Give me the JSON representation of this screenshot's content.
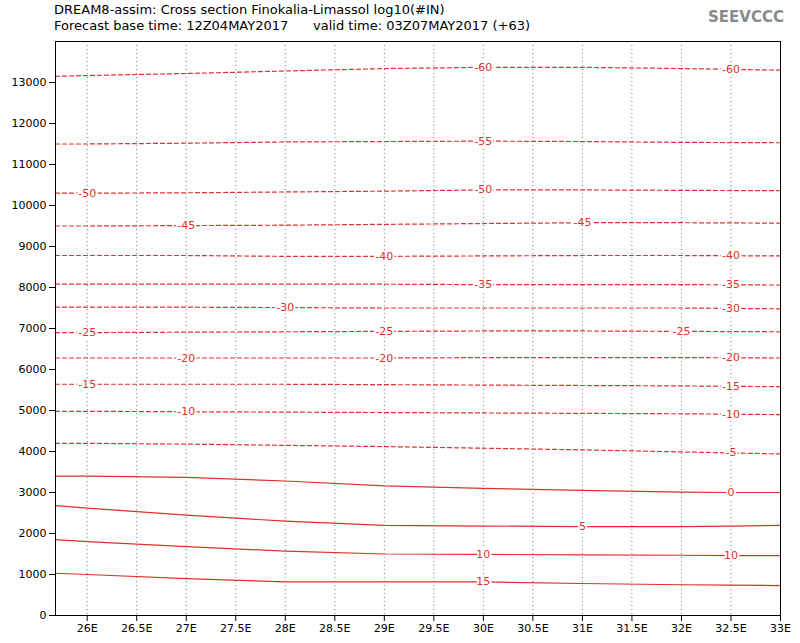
{
  "chart_data": {
    "type": "line",
    "title": "DREAM8-assim: Cross section Finokalia-Limassol log10(#IN)",
    "subtitle": "Forecast base time: 12Z04MAY2017      valid time: 03Z07MAY2017 (+63)",
    "logo": "SEEVCCC",
    "x": [
      25.68,
      26,
      27,
      28,
      29,
      30,
      31,
      32,
      32.5,
      33
    ],
    "xlim": [
      25.68,
      33
    ],
    "xticks": [
      {
        "value": 26,
        "label": "26E"
      },
      {
        "value": 26.5,
        "label": "26.5E"
      },
      {
        "value": 27,
        "label": "27E"
      },
      {
        "value": 27.5,
        "label": "27.5E"
      },
      {
        "value": 28,
        "label": "28E"
      },
      {
        "value": 28.5,
        "label": "28.5E"
      },
      {
        "value": 29,
        "label": "29E"
      },
      {
        "value": 29.5,
        "label": "29.5E"
      },
      {
        "value": 30,
        "label": "30E"
      },
      {
        "value": 30.5,
        "label": "30.5E"
      },
      {
        "value": 31,
        "label": "31E"
      },
      {
        "value": 31.5,
        "label": "31.5E"
      },
      {
        "value": 32,
        "label": "32E"
      },
      {
        "value": 32.5,
        "label": "32.5E"
      },
      {
        "value": 33,
        "label": "33E"
      }
    ],
    "ylim": [
      0,
      14000
    ],
    "yticks": [
      0,
      1000,
      2000,
      3000,
      4000,
      5000,
      6000,
      7000,
      8000,
      9000,
      10000,
      11000,
      12000,
      13000
    ],
    "grid": "x",
    "color": "#e0302a",
    "series": [
      {
        "name": "-60",
        "line_style": "dashed",
        "values": [
          13150,
          13170,
          13220,
          13280,
          13340,
          13370,
          13370,
          13340,
          13320,
          13300
        ],
        "label_x": [
          30,
          32.5
        ]
      },
      {
        "name": "-55",
        "line_style": "dashed",
        "values": [
          11500,
          11500,
          11520,
          11550,
          11560,
          11570,
          11560,
          11540,
          11535,
          11530
        ],
        "label_x": [
          30
        ]
      },
      {
        "name": "-50",
        "line_style": "dashed",
        "values": [
          10300,
          10300,
          10310,
          10330,
          10350,
          10380,
          10380,
          10370,
          10365,
          10360
        ],
        "label_x": [
          26,
          30
        ]
      },
      {
        "name": "-45",
        "line_style": "dashed",
        "values": [
          9500,
          9500,
          9510,
          9520,
          9540,
          9560,
          9580,
          9580,
          9575,
          9570
        ],
        "label_x": [
          27,
          31
        ]
      },
      {
        "name": "-40",
        "line_style": "dashed",
        "values": [
          8780,
          8780,
          8780,
          8760,
          8760,
          8770,
          8780,
          8780,
          8775,
          8770
        ],
        "label_x": [
          29,
          32.5
        ]
      },
      {
        "name": "-35",
        "line_style": "dashed",
        "values": [
          8080,
          8080,
          8080,
          8080,
          8080,
          8070,
          8070,
          8070,
          8065,
          8060
        ],
        "label_x": [
          30,
          32.5
        ]
      },
      {
        "name": "-30",
        "line_style": "dashed",
        "values": [
          7520,
          7520,
          7520,
          7510,
          7500,
          7500,
          7500,
          7500,
          7490,
          7480
        ],
        "label_x": [
          28,
          32.5
        ]
      },
      {
        "name": "-25",
        "line_style": "dashed",
        "values": [
          6900,
          6900,
          6910,
          6920,
          6930,
          6940,
          6940,
          6930,
          6925,
          6920
        ],
        "label_x": [
          26,
          29,
          32
        ]
      },
      {
        "name": "-20",
        "line_style": "dashed",
        "values": [
          6280,
          6280,
          6280,
          6280,
          6280,
          6290,
          6290,
          6290,
          6285,
          6280
        ],
        "label_x": [
          27,
          29,
          32.5
        ]
      },
      {
        "name": "-15",
        "line_style": "dashed",
        "values": [
          5640,
          5640,
          5640,
          5640,
          5630,
          5620,
          5610,
          5600,
          5590,
          5580
        ],
        "label_x": [
          26,
          32.5
        ]
      },
      {
        "name": "-10",
        "line_style": "dashed",
        "values": [
          4980,
          4980,
          4970,
          4960,
          4950,
          4940,
          4930,
          4920,
          4910,
          4900
        ],
        "label_x": [
          27,
          32.5
        ]
      },
      {
        "name": "-5",
        "line_style": "dashed",
        "values": [
          4200,
          4200,
          4180,
          4150,
          4120,
          4080,
          4040,
          3990,
          3965,
          3940
        ],
        "label_x": [
          32.5
        ]
      },
      {
        "name": "0",
        "line_style": "solid",
        "values": [
          3400,
          3400,
          3370,
          3280,
          3160,
          3100,
          3050,
          3010,
          3000,
          3000
        ],
        "label_x": [
          32.5
        ]
      },
      {
        "name": "5",
        "line_style": "solid",
        "values": [
          2680,
          2620,
          2450,
          2300,
          2200,
          2180,
          2170,
          2170,
          2180,
          2200
        ],
        "label_x": [
          31
        ]
      },
      {
        "name": "10",
        "line_style": "solid",
        "values": [
          1850,
          1800,
          1680,
          1570,
          1500,
          1490,
          1480,
          1470,
          1460,
          1460
        ],
        "label_x": [
          30,
          32.5
        ]
      },
      {
        "name": "15",
        "line_style": "solid",
        "values": [
          1030,
          1000,
          900,
          820,
          820,
          820,
          780,
          750,
          740,
          730
        ],
        "label_x": [
          30
        ]
      }
    ]
  }
}
